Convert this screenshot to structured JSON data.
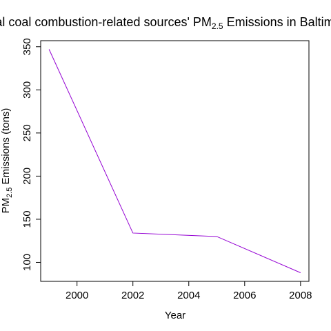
{
  "chart_data": {
    "type": "line",
    "title_prefix": "Total coal combustion-related sources' PM",
    "title_sub": "2.5",
    "title_suffix": " Emissions in Baltimore",
    "xlabel": "Year",
    "ylabel_prefix": "PM",
    "ylabel_sub": "2.5",
    "ylabel_suffix": " Emissions (tons)",
    "x": [
      1999,
      2002,
      2005,
      2008
    ],
    "y": [
      347,
      134,
      130,
      88
    ],
    "xlim": [
      1998.7,
      2008.3
    ],
    "ylim": [
      78,
      357
    ],
    "xticks": [
      2000,
      2002,
      2004,
      2006,
      2008
    ],
    "yticks": [
      100,
      150,
      200,
      250,
      300,
      350
    ],
    "line_color": "#9400d3",
    "grid": false,
    "legend": "none"
  }
}
